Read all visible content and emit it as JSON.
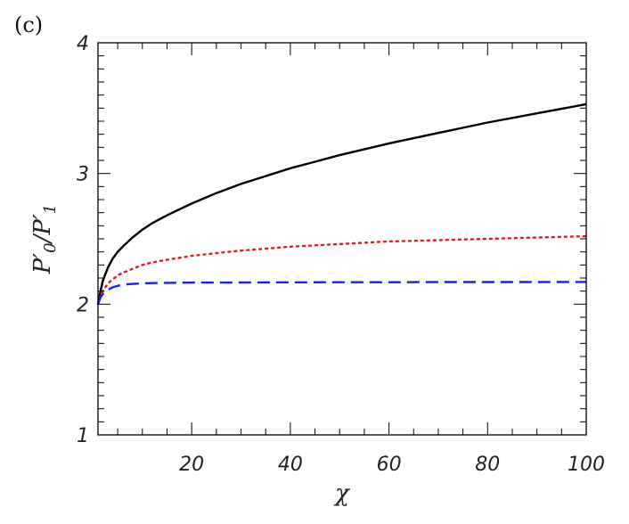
{
  "panel_label": "(c)",
  "chart_data": {
    "type": "line",
    "title": "",
    "xlabel": "χ",
    "ylabel": {
      "main": "P",
      "sub0": "0",
      "sub1": "1",
      "prime": "′",
      "slash": "/"
    },
    "xlim": [
      1,
      100
    ],
    "ylim": [
      1,
      4
    ],
    "x_ticks": [
      20,
      40,
      60,
      80,
      100
    ],
    "y_ticks": [
      1,
      2,
      3,
      4
    ],
    "x_ticklabels": [
      "20",
      "40",
      "60",
      "80",
      "100"
    ],
    "y_ticklabels": [
      "1",
      "2",
      "3",
      "4"
    ],
    "grid": false,
    "legend": "none",
    "series": [
      {
        "color": "#000000",
        "dash": "solid",
        "x": [
          1,
          1.5,
          2,
          3,
          4,
          5,
          6,
          8,
          10,
          12,
          15,
          20,
          25,
          30,
          35,
          40,
          45,
          50,
          60,
          70,
          80,
          90,
          100
        ],
        "y": [
          2.0,
          2.1,
          2.18,
          2.28,
          2.35,
          2.4,
          2.44,
          2.51,
          2.57,
          2.62,
          2.68,
          2.77,
          2.85,
          2.92,
          2.98,
          3.04,
          3.09,
          3.14,
          3.23,
          3.31,
          3.39,
          3.46,
          3.53
        ]
      },
      {
        "color": "#e8141c",
        "dash": "dotted",
        "x": [
          1,
          1.5,
          2,
          3,
          4,
          5,
          6,
          8,
          10,
          12,
          15,
          20,
          25,
          30,
          40,
          50,
          60,
          70,
          80,
          90,
          100
        ],
        "y": [
          2.0,
          2.06,
          2.1,
          2.16,
          2.19,
          2.22,
          2.24,
          2.27,
          2.3,
          2.32,
          2.34,
          2.37,
          2.39,
          2.41,
          2.44,
          2.46,
          2.48,
          2.49,
          2.5,
          2.51,
          2.52
        ]
      },
      {
        "color": "#1a1aff",
        "dash": "dashed",
        "x": [
          1,
          1.5,
          2,
          3,
          4,
          5,
          6,
          8,
          10,
          15,
          20,
          30,
          40,
          50,
          60,
          70,
          80,
          90,
          100
        ],
        "y": [
          2.0,
          2.05,
          2.08,
          2.11,
          2.13,
          2.14,
          2.15,
          2.155,
          2.16,
          2.163,
          2.165,
          2.166,
          2.167,
          2.168,
          2.168,
          2.169,
          2.169,
          2.169,
          2.17
        ]
      }
    ]
  }
}
